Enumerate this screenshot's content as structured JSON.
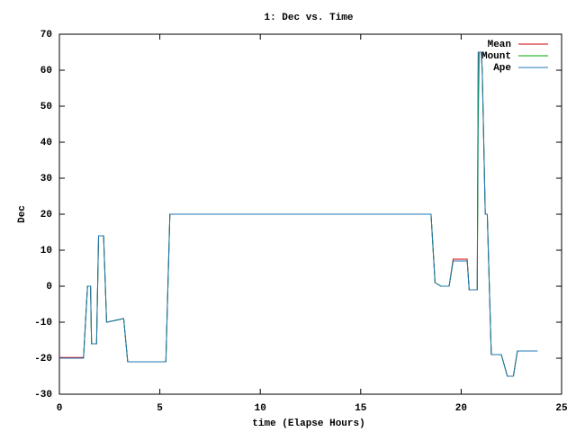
{
  "chart_data": {
    "type": "line",
    "title": "1: Dec vs. Time",
    "x_label": "time (Elapse Hours)",
    "y_label": "Dec",
    "x": [
      0,
      1.2,
      1.25,
      1.4,
      1.55,
      1.6,
      1.85,
      1.95,
      2.2,
      2.35,
      3.2,
      3.4,
      5.3,
      5.5,
      18.5,
      18.7,
      19.0,
      19.4,
      19.6,
      20.3,
      20.4,
      20.7,
      20.8,
      20.85,
      20.9,
      21.0,
      21.05,
      21.2,
      21.3,
      21.5,
      22.0,
      22.3,
      22.6,
      22.8,
      23.8
    ],
    "series": [
      {
        "name": "Mean",
        "color": "#cc0000",
        "values": [
          -19.8,
          -19.8,
          -15,
          0,
          0,
          -16,
          -16,
          14,
          14,
          -10,
          -9,
          -21,
          -21,
          20,
          20,
          1,
          0,
          0,
          7.5,
          7.5,
          -1,
          -1,
          -1,
          65,
          65,
          65,
          60,
          20,
          20,
          -19,
          -19,
          -25,
          -25,
          -18,
          -18
        ]
      },
      {
        "name": "Mount",
        "color": "#00aa00",
        "values": [
          -20,
          -20,
          -15,
          0,
          0,
          -16,
          -16,
          14,
          14,
          -10,
          -9,
          -21,
          -21,
          20,
          20,
          1,
          0,
          0,
          7,
          7,
          -1,
          -1,
          -1,
          45,
          65,
          65,
          60,
          20,
          20,
          -19,
          -19,
          -25,
          -25,
          -18,
          -18
        ]
      },
      {
        "name": "Ape",
        "color": "#1f77b4",
        "values": [
          -20,
          -20,
          -15,
          0,
          0,
          -16,
          -16,
          14,
          14,
          -10,
          -9,
          -21,
          -21,
          20,
          20,
          1,
          0,
          0,
          7,
          7,
          -1,
          -1,
          -1,
          65,
          65,
          65,
          60,
          20,
          20,
          -19,
          -19,
          -25,
          -25,
          -18,
          -18
        ]
      }
    ],
    "xlim": [
      0,
      25
    ],
    "xticks": [
      0,
      5,
      10,
      15,
      20,
      25
    ],
    "ylim": [
      -30,
      70
    ],
    "yticks": [
      -30,
      -20,
      -10,
      0,
      10,
      20,
      30,
      40,
      50,
      60,
      70
    ],
    "legend": "top-right"
  }
}
